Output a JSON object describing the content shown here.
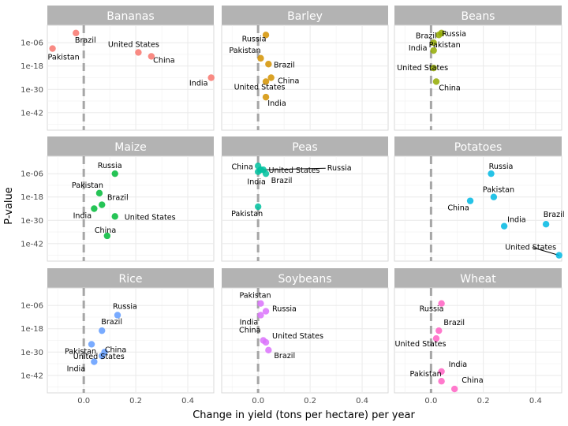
{
  "chart_data": {
    "type": "scatter",
    "layout": "facet_wrap 3x3",
    "xlabel": "Change in yield (tons per hectare) per year",
    "ylabel": "P-value",
    "x_ticks": [
      0.0,
      0.2,
      0.4
    ],
    "x_tick_labels": [
      "0.0",
      "0.2",
      "0.4"
    ],
    "xlim": [
      -0.14,
      0.5
    ],
    "y_scale": "log10",
    "y_ticks": [
      1e-06,
      1e-18,
      1e-30,
      1e-42
    ],
    "y_tick_labels": [
      "1e-06",
      "1e-18",
      "1e-30",
      "1e-42"
    ],
    "ylim": [
      1e-51,
      1000.0
    ],
    "reference_line": {
      "x": 0,
      "style": "dashed",
      "color": "#a6a6a6"
    },
    "grid": true,
    "legend": "none",
    "facets": [
      {
        "crop": "Bananas",
        "color": "#f8766d",
        "points": [
          {
            "country": "Brazil",
            "x": -0.03,
            "y": 0.1
          },
          {
            "country": "Pakistan",
            "x": -0.12,
            "y": 1e-09
          },
          {
            "country": "United States",
            "x": 0.21,
            "y": 1e-11
          },
          {
            "country": "China",
            "x": 0.26,
            "y": 1e-13
          },
          {
            "country": "India",
            "x": 0.49,
            "y": 1e-24
          }
        ]
      },
      {
        "crop": "Barley",
        "color": "#d39200",
        "points": [
          {
            "country": "Russia",
            "x": 0.03,
            "y": 0.01
          },
          {
            "country": "Pakistan",
            "x": 0.01,
            "y": 1e-14
          },
          {
            "country": "Brazil",
            "x": 0.04,
            "y": 1e-17
          },
          {
            "country": "China",
            "x": 0.05,
            "y": 1e-24
          },
          {
            "country": "United States",
            "x": 0.03,
            "y": 1e-26
          },
          {
            "country": "India",
            "x": 0.03,
            "y": 1e-34
          }
        ]
      },
      {
        "crop": "Beans",
        "color": "#93aa00",
        "points": [
          {
            "country": "Brazil",
            "x": 0.03,
            "y": 0.01
          },
          {
            "country": "Russia",
            "x": 0.04,
            "y": 0.1
          },
          {
            "country": "Pakistan",
            "x": 0.01,
            "y": 1e-06
          },
          {
            "country": "India",
            "x": 0.01,
            "y": 1e-10
          },
          {
            "country": "United States",
            "x": 0.01,
            "y": 1e-19
          },
          {
            "country": "China",
            "x": 0.02,
            "y": 1e-26
          }
        ]
      },
      {
        "crop": "Maize",
        "color": "#00ba38",
        "points": [
          {
            "country": "Russia",
            "x": 0.12,
            "y": 1e-06
          },
          {
            "country": "Pakistan",
            "x": 0.06,
            "y": 1e-16
          },
          {
            "country": "Brazil",
            "x": 0.07,
            "y": 1e-22
          },
          {
            "country": "India",
            "x": 0.04,
            "y": 1e-24
          },
          {
            "country": "United States",
            "x": 0.12,
            "y": 1e-28
          },
          {
            "country": "China",
            "x": 0.09,
            "y": 1e-38
          }
        ]
      },
      {
        "crop": "Peas",
        "color": "#00c19f",
        "points": [
          {
            "country": "China",
            "x": 0.0,
            "y": 0.01
          },
          {
            "country": "United States",
            "x": 0.01,
            "y": 0.0001
          },
          {
            "country": "Russia",
            "x": 0.02,
            "y": 0.0001
          },
          {
            "country": "India",
            "x": 0.0,
            "y": 1e-05
          },
          {
            "country": "Brazil",
            "x": 0.03,
            "y": 1e-06
          },
          {
            "country": "Pakistan",
            "x": 0.0,
            "y": 1e-23
          }
        ]
      },
      {
        "crop": "Potatoes",
        "color": "#00b9e3",
        "points": [
          {
            "country": "Russia",
            "x": 0.23,
            "y": 1e-06
          },
          {
            "country": "Pakistan",
            "x": 0.24,
            "y": 1e-18
          },
          {
            "country": "China",
            "x": 0.15,
            "y": 1e-20
          },
          {
            "country": "India",
            "x": 0.28,
            "y": 1e-33
          },
          {
            "country": "Brazil",
            "x": 0.44,
            "y": 1e-32
          },
          {
            "country": "United States",
            "x": 0.49,
            "y": 1e-48
          }
        ]
      },
      {
        "crop": "Rice",
        "color": "#619cff",
        "points": [
          {
            "country": "Russia",
            "x": 0.13,
            "y": 1e-11
          },
          {
            "country": "Brazil",
            "x": 0.07,
            "y": 1e-19
          },
          {
            "country": "Pakistan",
            "x": 0.03,
            "y": 1e-26
          },
          {
            "country": "China",
            "x": 0.08,
            "y": 1e-30
          },
          {
            "country": "United States",
            "x": 0.07,
            "y": 1e-32
          },
          {
            "country": "India",
            "x": 0.04,
            "y": 1e-35
          }
        ]
      },
      {
        "crop": "Soybeans",
        "color": "#db72fb",
        "points": [
          {
            "country": "Pakistan",
            "x": 0.01,
            "y": 1e-05
          },
          {
            "country": "Russia",
            "x": 0.03,
            "y": 1e-09
          },
          {
            "country": "India",
            "x": 0.01,
            "y": 1e-11
          },
          {
            "country": "China",
            "x": 0.02,
            "y": 1e-24
          },
          {
            "country": "United States",
            "x": 0.03,
            "y": 1e-25
          },
          {
            "country": "Brazil",
            "x": 0.04,
            "y": 1e-29
          }
        ]
      },
      {
        "crop": "Wheat",
        "color": "#ff61c3",
        "points": [
          {
            "country": "Russia",
            "x": 0.04,
            "y": 1e-05
          },
          {
            "country": "Brazil",
            "x": 0.03,
            "y": 1e-19
          },
          {
            "country": "United States",
            "x": 0.02,
            "y": 1e-23
          },
          {
            "country": "India",
            "x": 0.04,
            "y": 1e-40
          },
          {
            "country": "Pakistan",
            "x": 0.04,
            "y": 1e-45
          },
          {
            "country": "China",
            "x": 0.09,
            "y": 1e-49
          }
        ]
      }
    ]
  }
}
